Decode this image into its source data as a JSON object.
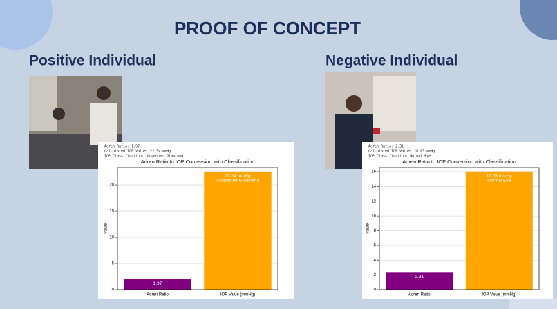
{
  "title": "PROOF OF CONCEPT",
  "panels": [
    {
      "heading": "Positive Individual"
    },
    {
      "heading": "Negative Individual"
    }
  ],
  "chart_data": [
    {
      "type": "bar",
      "info": [
        "Adren Ratio: 1.97",
        "Calculated IOP Value: 22.54 mmHg",
        "IOP Classification: Suspected Glaucoma"
      ],
      "title": "Adren Ratio to IOP Conversion with Classification",
      "y_label": "Value",
      "categories": [
        "Adren Ratio",
        "IOP Value (mmHg)"
      ],
      "values": [
        1.97,
        22.54
      ],
      "value_labels": [
        "1.97",
        "22.54 mmHg"
      ],
      "bar_notes": [
        null,
        "Suspected Glaucoma"
      ],
      "colors": [
        "#800080",
        "#ffa500"
      ],
      "ylim": [
        0,
        23.3
      ],
      "yticks": [
        0,
        5,
        10,
        15,
        20
      ],
      "grid": true
    },
    {
      "type": "bar",
      "info": [
        "Adren Ratio: 2.31",
        "Calculated IOP Value: 16.03 mmHg",
        "IOP Classification: Normal Eye"
      ],
      "title": "Adren Ratio to IOP Conversion with Classification",
      "y_label": "Value",
      "categories": [
        "Adren Ratio",
        "IOP Value (mmHg)"
      ],
      "values": [
        2.31,
        16.03
      ],
      "value_labels": [
        "2.31",
        "16.03 mmHg"
      ],
      "bar_notes": [
        null,
        "Normal Eye"
      ],
      "colors": [
        "#800080",
        "#ffa500"
      ],
      "ylim": [
        0,
        16.56
      ],
      "yticks": [
        0,
        2,
        4,
        6,
        8,
        10,
        12,
        14,
        16
      ],
      "grid": true
    }
  ]
}
